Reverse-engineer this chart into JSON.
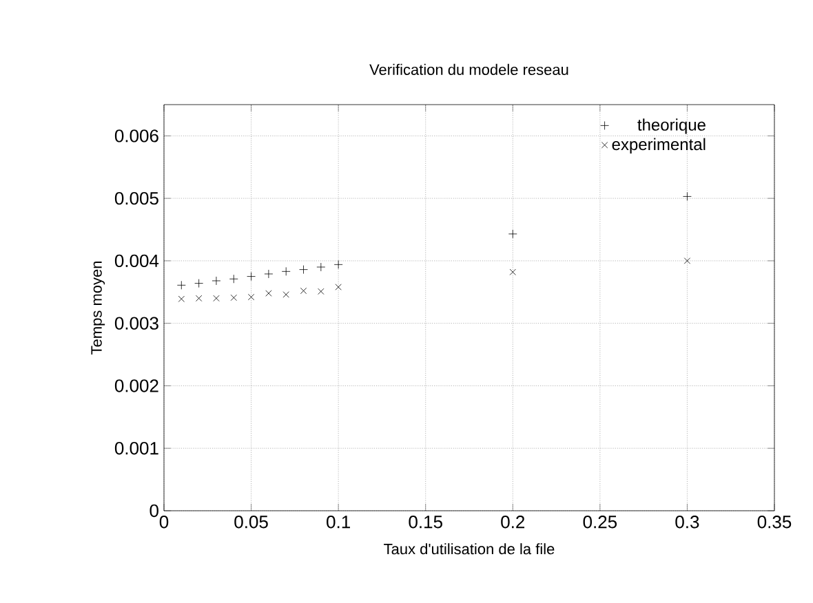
{
  "chart_data": {
    "type": "scatter",
    "title": "Verification du modele reseau",
    "xlabel": "Taux d'utilisation de la file",
    "ylabel": "Temps moyen",
    "x": [
      0.01,
      0.02,
      0.03,
      0.04,
      0.05,
      0.06,
      0.07,
      0.08,
      0.09,
      0.1,
      0.2,
      0.3
    ],
    "series": [
      {
        "name": "theorique",
        "color": "#000000",
        "marker": "plus",
        "values": [
          0.00361,
          0.00364,
          0.00368,
          0.00371,
          0.00375,
          0.00379,
          0.00383,
          0.00386,
          0.0039,
          0.00394,
          0.00443,
          0.00503
        ]
      },
      {
        "name": "experimental",
        "color": "#000000",
        "marker": "cross",
        "values": [
          0.00339,
          0.0034,
          0.0034,
          0.00341,
          0.00342,
          0.00348,
          0.00346,
          0.00352,
          0.00351,
          0.00358,
          0.00382,
          0.004
        ]
      }
    ],
    "xlim": [
      0,
      0.35
    ],
    "ylim": [
      0,
      0.0065
    ],
    "xticks": [
      0,
      0.05,
      0.1,
      0.15,
      0.2,
      0.25,
      0.3,
      0.35
    ],
    "yticks": [
      0,
      0.001,
      0.002,
      0.003,
      0.004,
      0.005,
      0.006
    ],
    "grid": true,
    "legend": "top right"
  }
}
